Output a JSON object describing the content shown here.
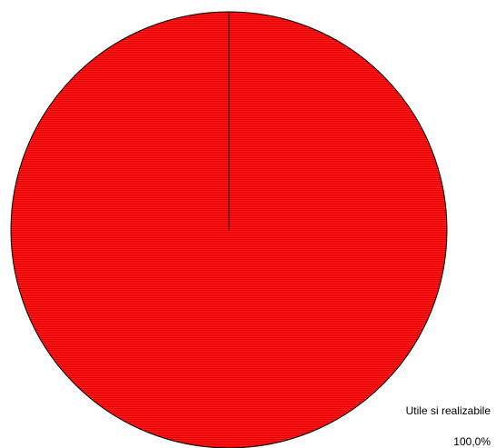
{
  "chart_data": {
    "type": "pie",
    "categories": [
      "Utile si realizabile"
    ],
    "values": [
      100.0
    ],
    "value_labels": [
      "100,0%"
    ],
    "colors": [
      "#ff1a1a"
    ],
    "title": "",
    "legend": "none"
  }
}
